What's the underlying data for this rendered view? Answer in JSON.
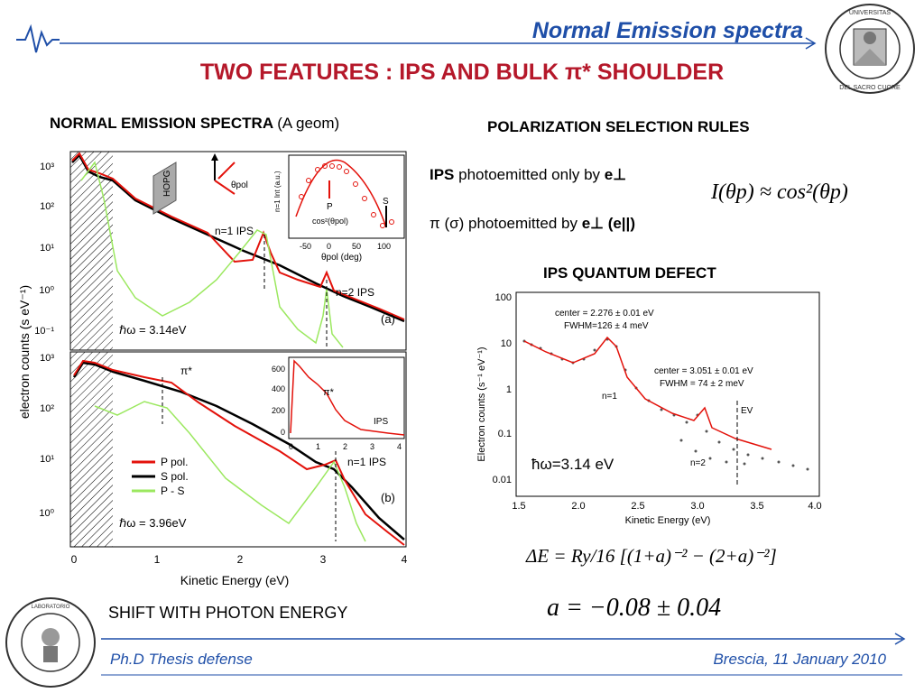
{
  "header": {
    "title": "Normal Emission spectra",
    "logo_text": "UNIVERSITÀ CATTOLICA DEL SACRO CUORE",
    "accent_color": "#1f4fa8"
  },
  "slide": {
    "main_title": "TWO FEATURES : IPS AND BULK π* SHOULDER",
    "title_color": "#b5182a"
  },
  "left_panel": {
    "title_bold": "NORMAL EMISSION SPECTRA",
    "title_geom": "(A geom)",
    "caption": "SHIFT WITH PHOTON ENERGY"
  },
  "right_panel": {
    "pol_title": "POLARIZATION SELECTION RULES",
    "rule1_bold": "IPS",
    "rule1_text": "photoemitted only by",
    "rule1_vec": "e⊥",
    "rule2_lead": "π (σ) photoemitted by",
    "rule2_vec": "e⊥ (e||)",
    "pol_formula": "I(θp) ≈ cos²(θp)",
    "defect_title": "IPS QUANTUM DEFECT",
    "defect_formula": "ΔE = Ry/16 [(1+a)⁻² − (2+a)⁻²]",
    "a_value": "a = −0.08 ± 0.04"
  },
  "footer": {
    "left": "Ph.D Thesis defense",
    "right": "Brescia, 11 January 2010",
    "logo_text": "LABORATORIO DI RICERCA IN FISICA ASTROFISICA E FISICA APPLICATA"
  },
  "chart_data": [
    {
      "type": "line",
      "panel": "(a)",
      "ylabel": "electron counts (s eV⁻¹)",
      "y_scale": "log",
      "xlim": [
        0,
        4
      ],
      "ylim": [
        0.1,
        1000
      ],
      "y_ticks": [
        "10³",
        "10²",
        "10¹",
        "10⁰",
        "10⁻¹"
      ],
      "legend_photon": "ℏω = 3.14eV",
      "annotations": [
        "n=1 IPS",
        "n=2 IPS",
        "(a)",
        "HOPG",
        "θpol"
      ],
      "series": [
        {
          "name": "P pol.",
          "color": "#e3120b",
          "x": [
            0.1,
            0.3,
            0.5,
            1,
            1.5,
            2,
            2.2,
            2.3,
            2.5,
            3,
            3.1,
            3.3,
            3.8
          ],
          "y": [
            1000,
            700,
            300,
            80,
            25,
            8,
            8,
            30,
            3,
            1,
            2.5,
            0.8,
            0.4
          ]
        },
        {
          "name": "S pol.",
          "color": "#000000",
          "x": [
            0.1,
            0.3,
            0.5,
            1,
            1.5,
            2,
            2.5,
            3,
            3.5,
            3.8
          ],
          "y": [
            900,
            500,
            250,
            70,
            20,
            6,
            2.5,
            0.9,
            0.5,
            0.35
          ]
        },
        {
          "name": "P - S",
          "color": "#9be85f",
          "x": [
            0.3,
            0.6,
            1,
            1.5,
            2,
            2.3,
            2.6,
            3,
            3.1,
            3.3
          ],
          "y": [
            300,
            10,
            3,
            0.8,
            1.2,
            20,
            0.8,
            0.1,
            1.5,
            0.1
          ]
        }
      ],
      "inset": {
        "xlabel": "θpol (deg)",
        "ylabel": "n=1 Int (a.u.)",
        "x_ticks": [
          "-50",
          "0",
          "50",
          "100"
        ],
        "y_ticks": [
          "2.5",
          "2.0",
          "1.5",
          "1.0",
          "0.5"
        ],
        "labels": [
          "P",
          "S",
          "cos²(θpol)"
        ],
        "x": [
          -50,
          -35,
          -20,
          -10,
          0,
          10,
          20,
          35,
          50,
          70,
          90,
          100
        ],
        "y": [
          1.1,
          1.8,
          2.3,
          2.4,
          2.4,
          2.4,
          2.2,
          1.7,
          1.1,
          0.5,
          0.2,
          0.3
        ]
      }
    },
    {
      "type": "line",
      "panel": "(b)",
      "xlabel": "Kinetic Energy (eV)",
      "y_scale": "log",
      "xlim": [
        0,
        4
      ],
      "x_ticks": [
        "0",
        "1",
        "2",
        "3",
        "4"
      ],
      "y_ticks": [
        "10³",
        "10²",
        "10¹",
        "10⁰"
      ],
      "legend_photon": "ℏω = 3.96eV",
      "annotations": [
        "π*",
        "n=1 IPS",
        "(b)"
      ],
      "legend": [
        "P pol.",
        "S pol.",
        "P - S"
      ],
      "inset": {
        "x_ticks": [
          "0",
          "1",
          "2",
          "3",
          "4"
        ],
        "y_ticks": [
          "600",
          "400",
          "200",
          "0"
        ],
        "labels": [
          "π*",
          "IPS"
        ],
        "x": [
          0,
          0.1,
          0.2,
          0.4,
          0.6,
          0.8,
          1,
          1.2,
          1.4,
          1.7,
          2,
          3,
          4
        ],
        "y": [
          100,
          520,
          500,
          430,
          390,
          350,
          300,
          250,
          200,
          90,
          50,
          30,
          20
        ]
      }
    },
    {
      "type": "scatter",
      "title": "IPS QUANTUM DEFECT",
      "xlabel": "Kinetic Energy (eV)",
      "ylabel": "Electron counts (s⁻¹ eV⁻¹)",
      "y_scale": "log",
      "xlim": [
        1.5,
        4.0
      ],
      "ylim": [
        0.01,
        100
      ],
      "x_ticks": [
        "1.5",
        "2.0",
        "2.5",
        "3.0",
        "3.5",
        "4.0"
      ],
      "y_ticks": [
        "100",
        "10",
        "1",
        "0.1",
        "0.01"
      ],
      "annotations": [
        "center = 2.276 ± 0.01 eV",
        "FWHM=126 ± 4 meV",
        "center = 3.051 ± 0.01 eV",
        "FWHM = 74 ± 2 meV",
        "n=1",
        "n=2",
        "EV"
      ],
      "photon_label": "ħω=3.14 eV",
      "fit_x": [
        1.55,
        1.8,
        2.0,
        2.15,
        2.28,
        2.4,
        2.6,
        2.8,
        3.0,
        3.05,
        3.15,
        3.4,
        3.8
      ],
      "fit_y": [
        8,
        5,
        3.5,
        6,
        13,
        4,
        1,
        0.35,
        0.2,
        0.3,
        0.12,
        0.07,
        0.05
      ]
    }
  ]
}
